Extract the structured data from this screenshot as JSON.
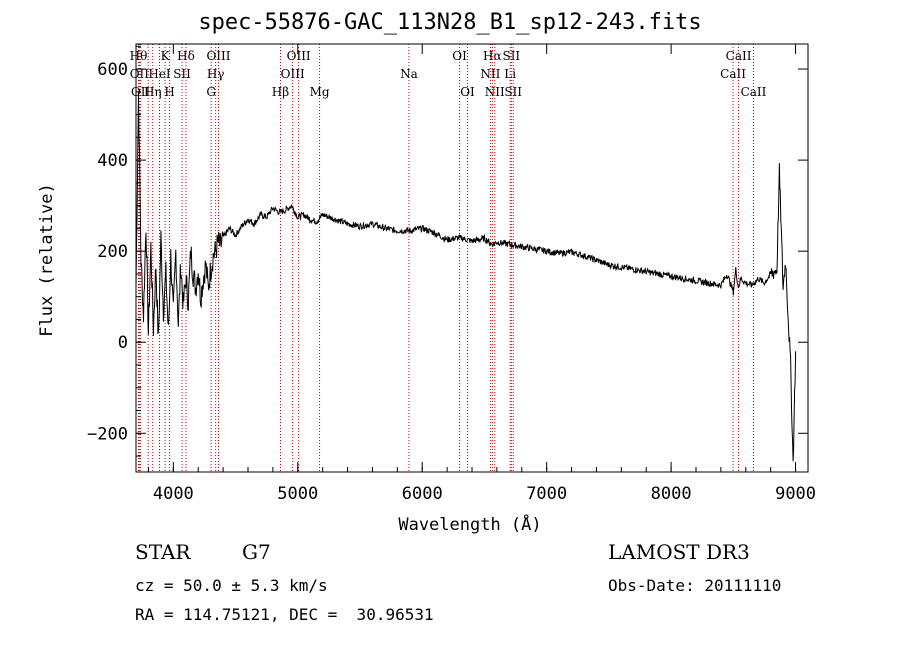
{
  "chart_data": {
    "type": "line",
    "title": "spec-55876-GAC_113N28_B1_sp12-243.fits",
    "xlabel": "Wavelength (Å)",
    "ylabel": "Flux (relative)",
    "xlim": [
      3700,
      9100
    ],
    "ylim": [
      -285,
      655
    ],
    "xticks": [
      4000,
      5000,
      6000,
      7000,
      8000,
      9000
    ],
    "yticks": [
      -200,
      0,
      200,
      400,
      600
    ],
    "series": [
      {
        "name": "flux",
        "x": [
          3700,
          3720,
          3740,
          3760,
          3780,
          3800,
          3820,
          3840,
          3860,
          3880,
          3900,
          3920,
          3940,
          3960,
          3980,
          4000,
          4020,
          4040,
          4060,
          4080,
          4100,
          4120,
          4140,
          4160,
          4180,
          4200,
          4220,
          4240,
          4260,
          4280,
          4300,
          4320,
          4340,
          4360,
          4380,
          4400,
          4450,
          4500,
          4550,
          4600,
          4650,
          4700,
          4750,
          4800,
          4850,
          4900,
          4950,
          5000,
          5050,
          5100,
          5150,
          5200,
          5300,
          5400,
          5500,
          5600,
          5700,
          5800,
          5900,
          6000,
          6100,
          6200,
          6300,
          6400,
          6500,
          6560,
          6600,
          6700,
          6800,
          6900,
          7000,
          7100,
          7200,
          7300,
          7400,
          7500,
          7600,
          7700,
          7800,
          7900,
          8000,
          8100,
          8200,
          8300,
          8400,
          8450,
          8500,
          8520,
          8540,
          8560,
          8600,
          8650,
          8700,
          8750,
          8800,
          8850,
          8870,
          8900,
          8920,
          8940,
          8960,
          8980,
          9000
        ],
        "values": [
          120,
          550,
          180,
          60,
          260,
          20,
          210,
          30,
          170,
          0,
          230,
          70,
          150,
          20,
          190,
          60,
          200,
          40,
          170,
          80,
          140,
          90,
          200,
          150,
          120,
          160,
          100,
          140,
          170,
          120,
          160,
          190,
          200,
          220,
          210,
          230,
          250,
          235,
          255,
          270,
          260,
          280,
          275,
          295,
          285,
          290,
          300,
          275,
          280,
          270,
          265,
          280,
          270,
          260,
          255,
          260,
          250,
          245,
          245,
          250,
          240,
          225,
          230,
          222,
          228,
          215,
          220,
          215,
          210,
          205,
          200,
          195,
          198,
          190,
          180,
          170,
          165,
          160,
          155,
          150,
          145,
          140,
          135,
          130,
          125,
          150,
          110,
          160,
          120,
          140,
          130,
          125,
          140,
          130,
          150,
          160,
          375,
          120,
          180,
          60,
          -50,
          -265,
          -20
        ]
      }
    ],
    "lines": [
      {
        "w": 3720,
        "label": "Hθ",
        "row": 0
      },
      {
        "w": 3727,
        "label": "OII",
        "row": 1
      },
      {
        "w": 3737,
        "label": "OII",
        "row": 2
      },
      {
        "w": 3798,
        "label": "",
        "row": 0
      },
      {
        "w": 3835,
        "label": "Hη",
        "row": 2
      },
      {
        "w": 3889,
        "label": "HeI",
        "row": 1
      },
      {
        "w": 3934,
        "label": "K",
        "row": 0
      },
      {
        "w": 3970,
        "label": "H",
        "row": 2
      },
      {
        "w": 4070,
        "label": "SII",
        "row": 1
      },
      {
        "w": 4102,
        "label": "Hδ",
        "row": 0
      },
      {
        "w": 4304,
        "label": "G",
        "row": 2
      },
      {
        "w": 4340,
        "label": "Hγ",
        "row": 1
      },
      {
        "w": 4363,
        "label": "OIII",
        "row": 0
      },
      {
        "w": 4861,
        "label": "Hβ",
        "row": 2
      },
      {
        "w": 4959,
        "label": "OIII",
        "row": 1
      },
      {
        "w": 5007,
        "label": "OIII",
        "row": 0
      },
      {
        "w": 5175,
        "label": "Mg",
        "row": 2
      },
      {
        "w": 5893,
        "label": "Na",
        "row": 1
      },
      {
        "w": 6300,
        "label": "OI",
        "row": 0
      },
      {
        "w": 6364,
        "label": "OI",
        "row": 2
      },
      {
        "w": 6548,
        "label": "NII",
        "row": 1
      },
      {
        "w": 6563,
        "label": "Hα",
        "row": 0
      },
      {
        "w": 6583,
        "label": "NII",
        "row": 2
      },
      {
        "w": 6707,
        "label": "Li",
        "row": 1
      },
      {
        "w": 6716,
        "label": "SII",
        "row": 0
      },
      {
        "w": 6731,
        "label": "SII",
        "row": 2
      },
      {
        "w": 8498,
        "label": "CaII",
        "row": 1
      },
      {
        "w": 8542,
        "label": "CaII",
        "row": 0
      },
      {
        "w": 8662,
        "label": "CaII",
        "row": 2
      }
    ]
  },
  "info": {
    "class": "STAR",
    "subclass": "G7",
    "survey": "LAMOST DR3",
    "cz": "cz = 50.0 ± 5.3 km/s",
    "obs_date": "Obs-Date: 20111110",
    "radec": "RA = 114.75121, DEC =  30.96531"
  }
}
